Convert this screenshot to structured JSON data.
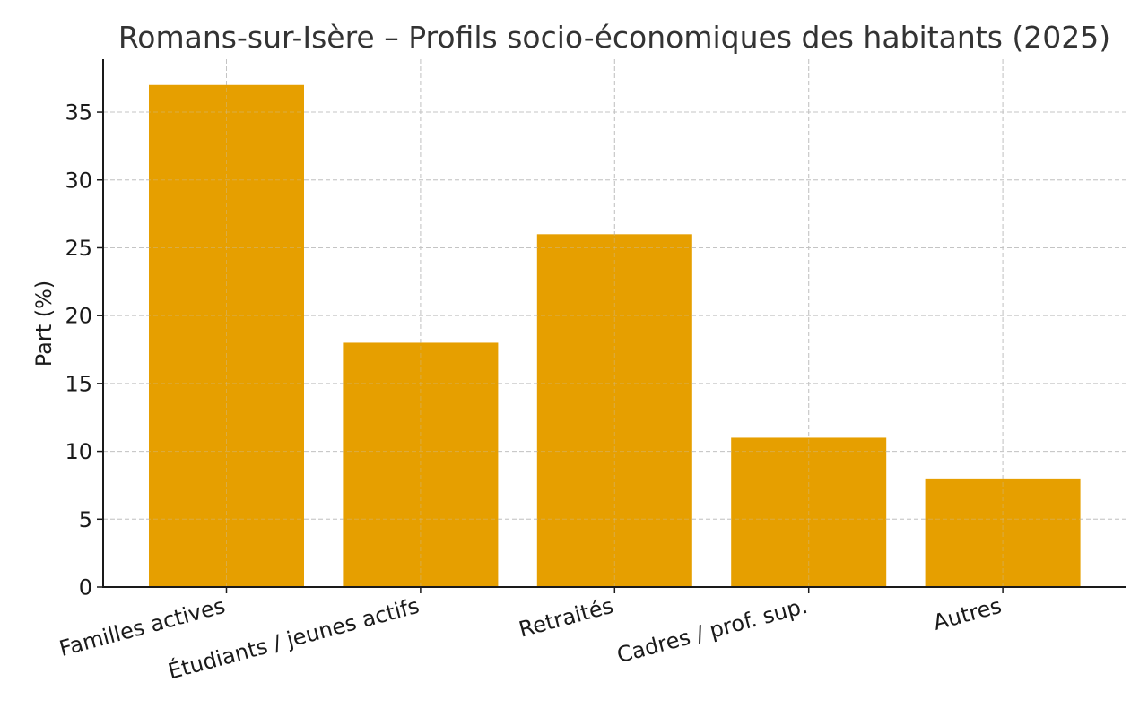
{
  "chart_data": {
    "type": "bar",
    "title": "Romans-sur-Isère – Profils socio-économiques des habitants (2025)",
    "xlabel": "",
    "ylabel": "Part (%)",
    "categories": [
      "Familles actives",
      "Étudiants / jeunes actifs",
      "Retraités",
      "Cadres / prof. sup.",
      "Autres"
    ],
    "values": [
      37,
      18,
      26,
      11,
      8
    ],
    "ylim": [
      0,
      38.9
    ],
    "yticks": [
      0,
      5,
      10,
      15,
      20,
      25,
      30,
      35
    ],
    "grid": true,
    "bar_color": "#E69F00",
    "legend": null
  }
}
